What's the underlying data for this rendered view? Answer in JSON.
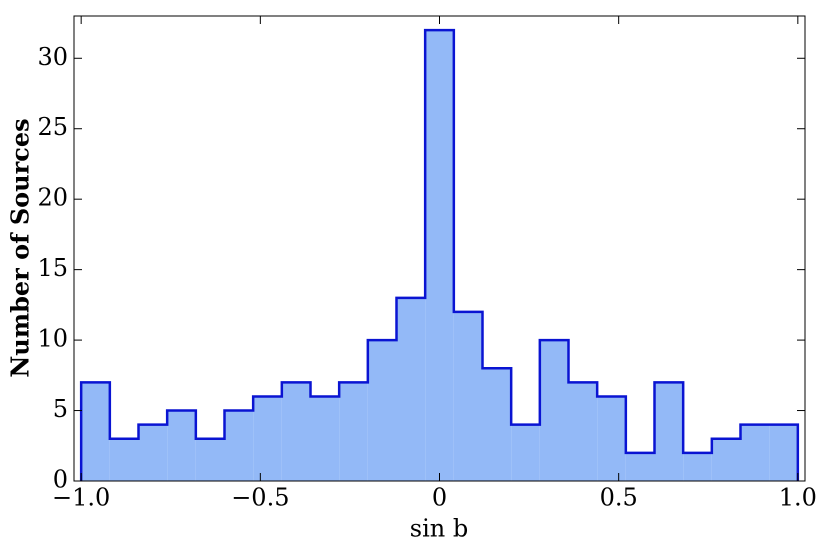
{
  "chart_data": {
    "type": "histogram",
    "xlabel": "sin b",
    "ylabel": "Number of Sources",
    "bins": [
      -1,
      -0.92,
      -0.84,
      -0.76,
      -0.68,
      -0.6,
      -0.52,
      -0.44,
      -0.36,
      -0.28,
      -0.2,
      -0.12,
      -0.04,
      0.04,
      0.12,
      0.2,
      0.28,
      0.36,
      0.44,
      0.52,
      0.6,
      0.68,
      0.76,
      0.84,
      0.92,
      1
    ],
    "values": [
      7,
      3,
      4,
      5,
      3,
      5,
      6,
      7,
      6,
      7,
      10,
      13,
      32,
      12,
      8,
      4,
      10,
      7,
      6,
      2,
      7,
      2,
      3,
      4,
      4
    ],
    "color": "#93b9f7",
    "edge_color": "#0a14d2",
    "xlim": [
      -1.02,
      1.02
    ],
    "ylim": [
      0,
      33
    ],
    "xticks": [
      {
        "value": -1.0,
        "label": "−1.0"
      },
      {
        "value": -0.5,
        "label": "−0.5"
      },
      0,
      {
        "value": 0.5,
        "label": "0.5"
      },
      {
        "value": 1.0,
        "label": "1.0"
      }
    ],
    "yticks": [
      0,
      5,
      10,
      15,
      20,
      25,
      30
    ]
  }
}
